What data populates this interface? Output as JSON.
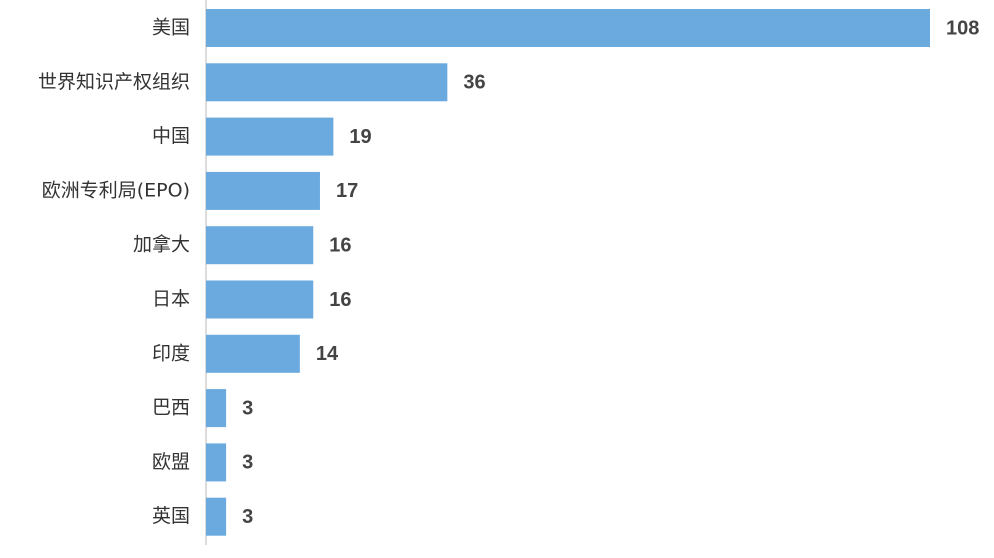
{
  "chart_data": {
    "type": "hbar",
    "categories": [
      "美国",
      "世界知识产权组织",
      "中国",
      "欧洲专利局(EPO)",
      "加拿大",
      "日本",
      "印度",
      "巴西",
      "欧盟",
      "英国"
    ],
    "values": [
      108,
      36,
      19,
      17,
      16,
      16,
      14,
      3,
      3,
      3
    ],
    "color": "#6aaade"
  }
}
